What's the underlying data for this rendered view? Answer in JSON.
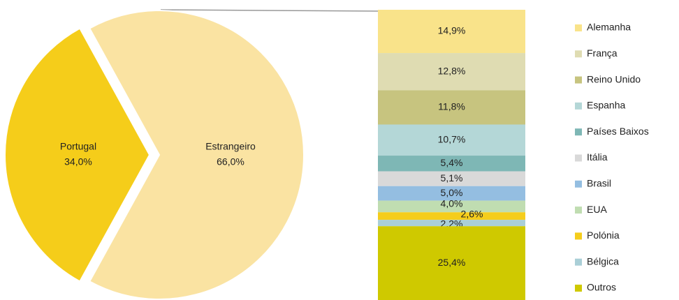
{
  "chart_data": [
    {
      "type": "pie",
      "categories": [
        "Portugal",
        "Estrangeiro"
      ],
      "values": [
        34.0,
        66.0
      ],
      "value_labels": [
        "34,0%",
        "66,0%"
      ],
      "colors": [
        "#f5cd1a",
        "#fae3a2"
      ]
    },
    {
      "type": "stacked_bar",
      "legend": "right",
      "series": [
        {
          "name": "Alemanha",
          "color": "#f9e38a",
          "values": [
            14.9
          ],
          "value_labels": [
            "14,9%"
          ]
        },
        {
          "name": "França",
          "color": "#dfdcb2",
          "values": [
            12.8
          ],
          "value_labels": [
            "12,8%"
          ]
        },
        {
          "name": "Reino Unido",
          "color": "#c7c47f",
          "values": [
            11.8
          ],
          "value_labels": [
            "11,8%"
          ]
        },
        {
          "name": "Espanha",
          "color": "#b4d7d7",
          "values": [
            10.7
          ],
          "value_labels": [
            "10,7%"
          ]
        },
        {
          "name": "Países Baixos",
          "color": "#7eb7b5",
          "values": [
            5.4
          ],
          "value_labels": [
            "5,4%"
          ]
        },
        {
          "name": "Itália",
          "color": "#d9d9d9",
          "values": [
            5.1
          ],
          "value_labels": [
            "5,1%"
          ]
        },
        {
          "name": "Brasil",
          "color": "#94bee1",
          "values": [
            5.0
          ],
          "value_labels": [
            "5,0%"
          ]
        },
        {
          "name": "EUA",
          "color": "#c0ddb1",
          "values": [
            4.0
          ],
          "value_labels": [
            "4,0%"
          ]
        },
        {
          "name": "Polónia",
          "color": "#f5cd1c",
          "values": [
            2.6
          ],
          "value_labels": [
            "2,6%"
          ]
        },
        {
          "name": "Bélgica",
          "color": "#aacfd7",
          "values": [
            2.2
          ],
          "value_labels": [
            "2,2%"
          ]
        },
        {
          "name": "Outros",
          "color": "#cfc900",
          "values": [
            25.4
          ],
          "value_labels": [
            "25,4%"
          ]
        }
      ]
    }
  ]
}
